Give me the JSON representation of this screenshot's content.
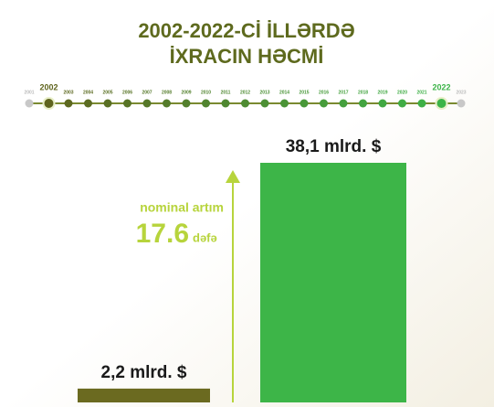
{
  "chart_data": {
    "type": "bar",
    "title": [
      "2002-2022-Cİ İLLƏRDƏ",
      "İXRACIN HƏCMİ"
    ],
    "timeline": [
      "2001",
      "2002",
      "2003",
      "2004",
      "2005",
      "2006",
      "2007",
      "2008",
      "2009",
      "2010",
      "2011",
      "2012",
      "2013",
      "2014",
      "2015",
      "2016",
      "2017",
      "2018",
      "2019",
      "2020",
      "2021",
      "2022",
      "2023"
    ],
    "categories": [
      null,
      null
    ],
    "values": [
      2.2,
      38.1
    ],
    "value_labels": [
      "2,2 mlrd. $",
      "38,1 mlrd. $"
    ],
    "colors": [
      "#6b6a20",
      "#3db548"
    ],
    "annotation": {
      "line1": "nominal artım",
      "factor": "17.6",
      "unit": "dəfə"
    }
  }
}
